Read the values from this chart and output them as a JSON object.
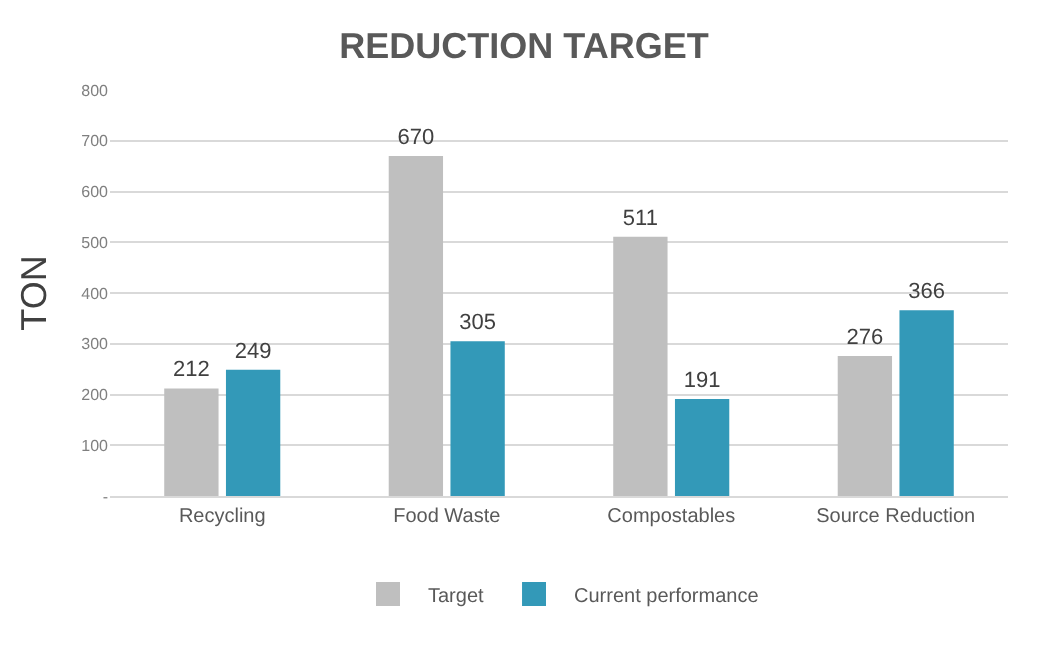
{
  "chart_data": {
    "type": "bar",
    "title": "REDUCTION TARGET",
    "ylabel": "TON",
    "categories": [
      "Recycling",
      "Food Waste",
      "Compostables",
      "Source Reduction"
    ],
    "series": [
      {
        "name": "Target",
        "color": "#bfbfbf",
        "values": [
          212,
          670,
          511,
          276
        ]
      },
      {
        "name": "Current performance",
        "color": "#3399b8",
        "values": [
          249,
          305,
          191,
          366
        ]
      }
    ],
    "ylim": [
      0,
      800
    ],
    "yticks": [
      {
        "value": 0,
        "label": "-"
      },
      100,
      200,
      300,
      400,
      500,
      600,
      700,
      800
    ],
    "grid": "y",
    "legend": "bottom",
    "data_labels": true
  }
}
